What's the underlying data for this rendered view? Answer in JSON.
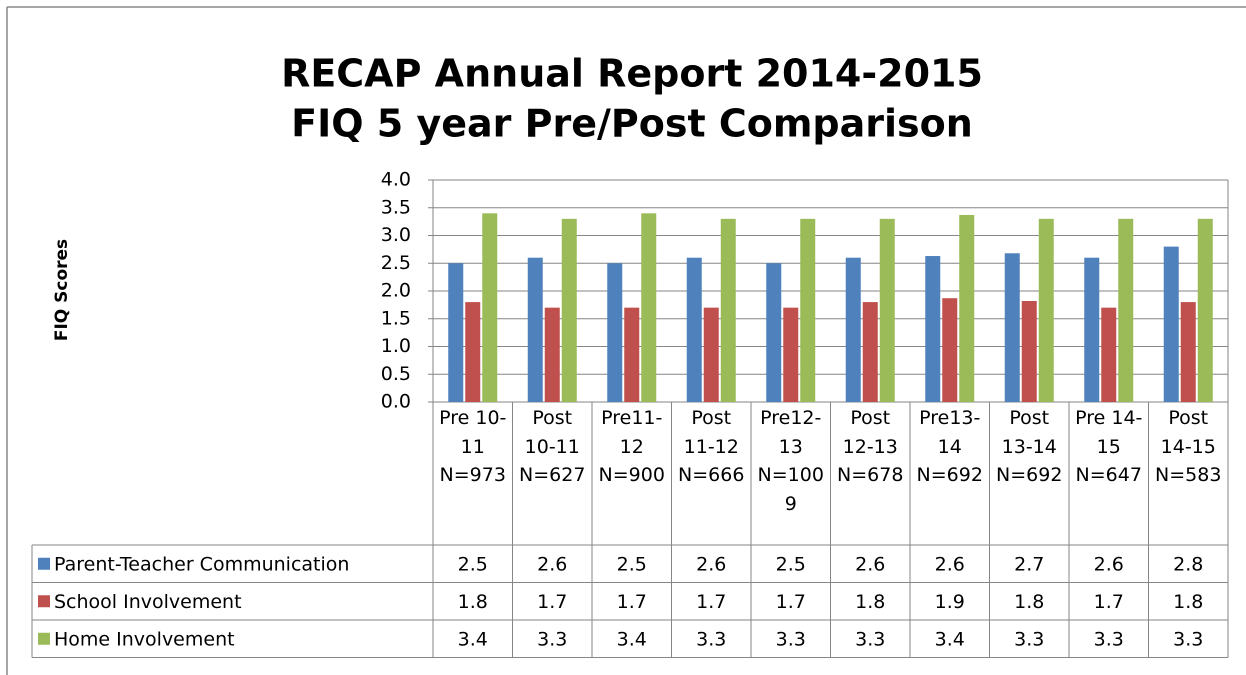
{
  "chart_data": {
    "type": "bar",
    "title": "RECAP Annual Report 2014-2015",
    "subtitle": "FIQ 5 year Pre/Post Comparison",
    "y_label": "FIQ Scores",
    "categories": [
      "Pre 10-11 N=973",
      "Post 10-11 N=627",
      "Pre11-12 N=900",
      "Post 11-12 N=666",
      "Pre12-13 N=1009",
      "Post 12-13 N=678",
      "Pre13-14 N=692",
      "Post 13-14 N=692",
      "Pre 14-15 N=647",
      "Post 14-15 N=583"
    ],
    "series": [
      {
        "name": "Parent-Teacher Communication",
        "color": "#4f81bd",
        "values": [
          2.5,
          2.6,
          2.5,
          2.6,
          2.5,
          2.6,
          2.63,
          2.68,
          2.6,
          2.8
        ],
        "value_labels": [
          "2.5",
          "2.6",
          "2.5",
          "2.6",
          "2.5",
          "2.6",
          "2.6",
          "2.7",
          "2.6",
          "2.8"
        ]
      },
      {
        "name": "School Involvement",
        "color": "#c0504d",
        "values": [
          1.8,
          1.7,
          1.7,
          1.7,
          1.7,
          1.8,
          1.87,
          1.82,
          1.7,
          1.8
        ],
        "value_labels": [
          "1.8",
          "1.7",
          "1.7",
          "1.7",
          "1.7",
          "1.8",
          "1.9",
          "1.8",
          "1.7",
          "1.8"
        ]
      },
      {
        "name": "Home Involvement",
        "color": "#9bbb59",
        "values": [
          3.4,
          3.3,
          3.4,
          3.3,
          3.3,
          3.3,
          3.37,
          3.3,
          3.3,
          3.3
        ],
        "value_labels": [
          "3.4",
          "3.3",
          "3.4",
          "3.3",
          "3.3",
          "3.3",
          "3.4",
          "3.3",
          "3.3",
          "3.3"
        ]
      }
    ],
    "ylim": [
      0,
      4
    ],
    "yticks": [
      {
        "value": 0,
        "label": "0.0"
      },
      {
        "value": 0.5,
        "label": "0.5"
      },
      {
        "value": 1,
        "label": "1.0"
      },
      {
        "value": 1.5,
        "label": "1.5"
      },
      {
        "value": 2,
        "label": "2.0"
      },
      {
        "value": 2.5,
        "label": "2.5"
      },
      {
        "value": 3,
        "label": "3.0"
      },
      {
        "value": 3.5,
        "label": "3.5"
      },
      {
        "value": 4,
        "label": "4.0"
      }
    ],
    "grid": true,
    "legend": "data-table"
  }
}
